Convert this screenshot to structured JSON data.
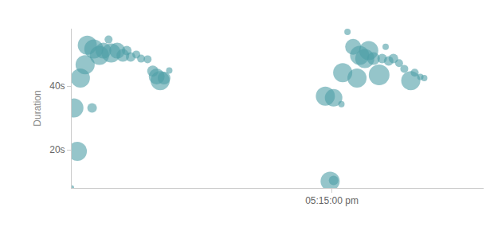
{
  "chart_data": {
    "type": "bubble",
    "ylabel": "Duration",
    "x": [
      61500,
      61513,
      61505,
      61547,
      61520,
      61531,
      61536,
      61551,
      61564,
      61573,
      61585,
      61591,
      61605,
      61618,
      61627,
      61636,
      61649,
      61660,
      61675,
      61687,
      61696,
      61704,
      61713,
      61725,
      62096,
      62104,
      62085,
      62104,
      62122,
      62125,
      62136,
      62149,
      62158,
      62164,
      62176,
      62185,
      62196,
      62209,
      62216,
      62224,
      62231,
      62242,
      62255,
      62267,
      62282,
      62291,
      62304,
      62313
    ],
    "values": [
      8.1,
      19.5,
      33.1,
      33.1,
      42.5,
      46.7,
      52.8,
      51.6,
      49.6,
      51.1,
      54.6,
      50.4,
      51.1,
      49.6,
      51.1,
      49.1,
      49.9,
      48.6,
      48.4,
      44.7,
      43.0,
      41.7,
      42.5,
      44.9,
      10.1,
      10.4,
      36.8,
      36.3,
      34.3,
      44.2,
      57.0,
      52.3,
      42.5,
      49.6,
      48.6,
      51.1,
      48.6,
      43.5,
      48.6,
      52.3,
      47.9,
      48.6,
      47.2,
      45.4,
      41.7,
      44.2,
      42.9,
      42.5
    ],
    "sizes": [
      3,
      12,
      12,
      6,
      12,
      12,
      12,
      12,
      12,
      10,
      5,
      12,
      10,
      8,
      6,
      6,
      5,
      5,
      5,
      7,
      10,
      12,
      8,
      4,
      12,
      6,
      12,
      11,
      4,
      12,
      4,
      10,
      12,
      12,
      12,
      12,
      8,
      13,
      6,
      4,
      6,
      6,
      5,
      5,
      12,
      5,
      4,
      4
    ],
    "color": "#4e9fa6",
    "marker": "circle",
    "xlim": [
      61500,
      62450
    ],
    "xticks": [
      {
        "value": 62100,
        "label": "05:15:00 pm"
      }
    ],
    "ylim": [
      8,
      58
    ],
    "yticks": [
      {
        "value": 20,
        "label": "20s"
      },
      {
        "value": 40,
        "label": "40s"
      }
    ],
    "grid": false
  }
}
